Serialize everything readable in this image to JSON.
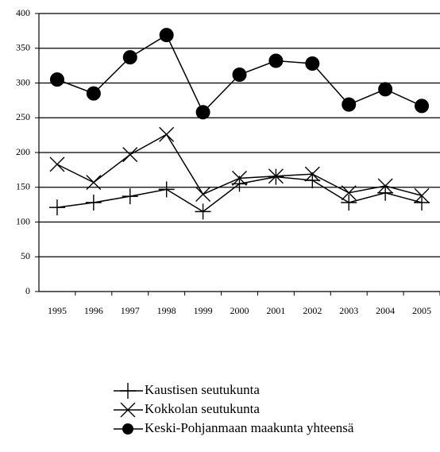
{
  "chart_data": {
    "type": "line",
    "categories": [
      "1995",
      "1996",
      "1997",
      "1998",
      "1999",
      "2000",
      "2001",
      "2002",
      "2003",
      "2004",
      "2005"
    ],
    "series": [
      {
        "name": "Kaustisen seutukunta",
        "color": "#000000",
        "marker": "plus",
        "values": [
          121,
          128,
          137,
          147,
          115,
          155,
          165,
          160,
          128,
          142,
          128
        ]
      },
      {
        "name": "Kokkolan seutukunta",
        "color": "#000000",
        "marker": "x",
        "values": [
          183,
          157,
          197,
          226,
          140,
          163,
          166,
          169,
          142,
          152,
          138
        ]
      },
      {
        "name": "Keski-Pohjanmaan maakunta yhteensä",
        "color": "#000000",
        "marker": "circle",
        "values": [
          305,
          285,
          337,
          369,
          258,
          312,
          332,
          328,
          269,
          291,
          267
        ]
      }
    ],
    "ylim": [
      0,
      400
    ],
    "yticks": [
      0,
      50,
      100,
      150,
      200,
      250,
      300,
      350,
      400
    ],
    "grid": true,
    "legend": "bottom"
  }
}
